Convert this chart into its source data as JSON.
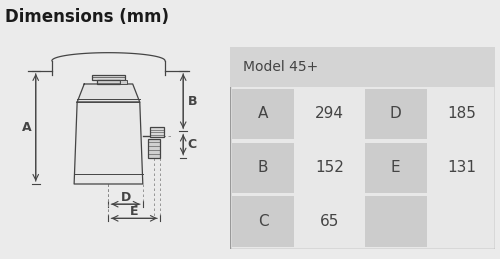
{
  "title": "Dimensions (mm)",
  "model_label": "Model 45+",
  "table_data": [
    [
      "A",
      "294",
      "D",
      "185"
    ],
    [
      "B",
      "152",
      "E",
      "131"
    ],
    [
      "C",
      "65",
      "",
      ""
    ]
  ],
  "bg_color": "#ebebeb",
  "table_outer_bg": "#d0d0d0",
  "model_row_bg": "#d4d4d4",
  "cell_bg_dark": "#cccccc",
  "cell_bg_light": "#e8e8e8",
  "diagram_bg": "#ffffff",
  "title_color": "#1a1a1a",
  "text_color": "#555555",
  "dim_text_color": "#444444",
  "line_color": "#444444",
  "body_fill": "#e8e8e8",
  "body_fill2": "#d8d8d8"
}
